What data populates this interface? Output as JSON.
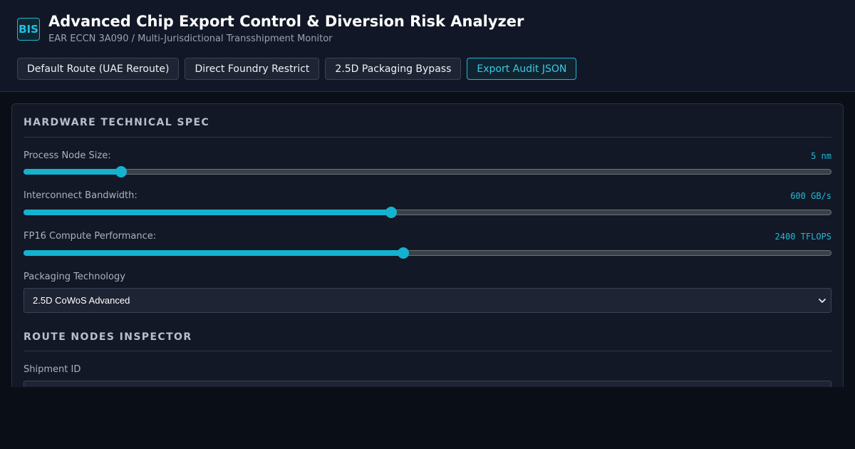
{
  "header": {
    "logo": "BIS",
    "title": "Advanced Chip Export Control & Diversion Risk Analyzer",
    "subtitle": "EAR ECCN 3A090 / Multi-Jurisdictional Transshipment Monitor",
    "buttons": [
      {
        "label": "Default Route (UAE Reroute)"
      },
      {
        "label": "Direct Foundry Restrict"
      },
      {
        "label": "2.5D Packaging Bypass"
      },
      {
        "label": "Export Audit JSON"
      }
    ]
  },
  "hardware_spec": {
    "title": "HARDWARE TECHNICAL SPEC",
    "process_node": {
      "label": "Process Node Size:",
      "value_text": "5 nm",
      "fraction": 0.121
    },
    "bandwidth": {
      "label": "Interconnect Bandwidth:",
      "value_text": "600 GB/s",
      "fraction": 0.455
    },
    "fp16": {
      "label": "FP16 Compute Performance:",
      "value_text": "2400 TFLOPS",
      "fraction": 0.47
    },
    "packaging": {
      "label": "Packaging Technology",
      "selected": "2.5D CoWoS Advanced"
    }
  },
  "route_inspector": {
    "title": "ROUTE NODES INSPECTOR",
    "shipment_id": {
      "label": "Shipment ID",
      "value": ""
    }
  },
  "colors": {
    "accent": "#15b2d0",
    "background": "#0a0e17",
    "panel": "#121826"
  }
}
